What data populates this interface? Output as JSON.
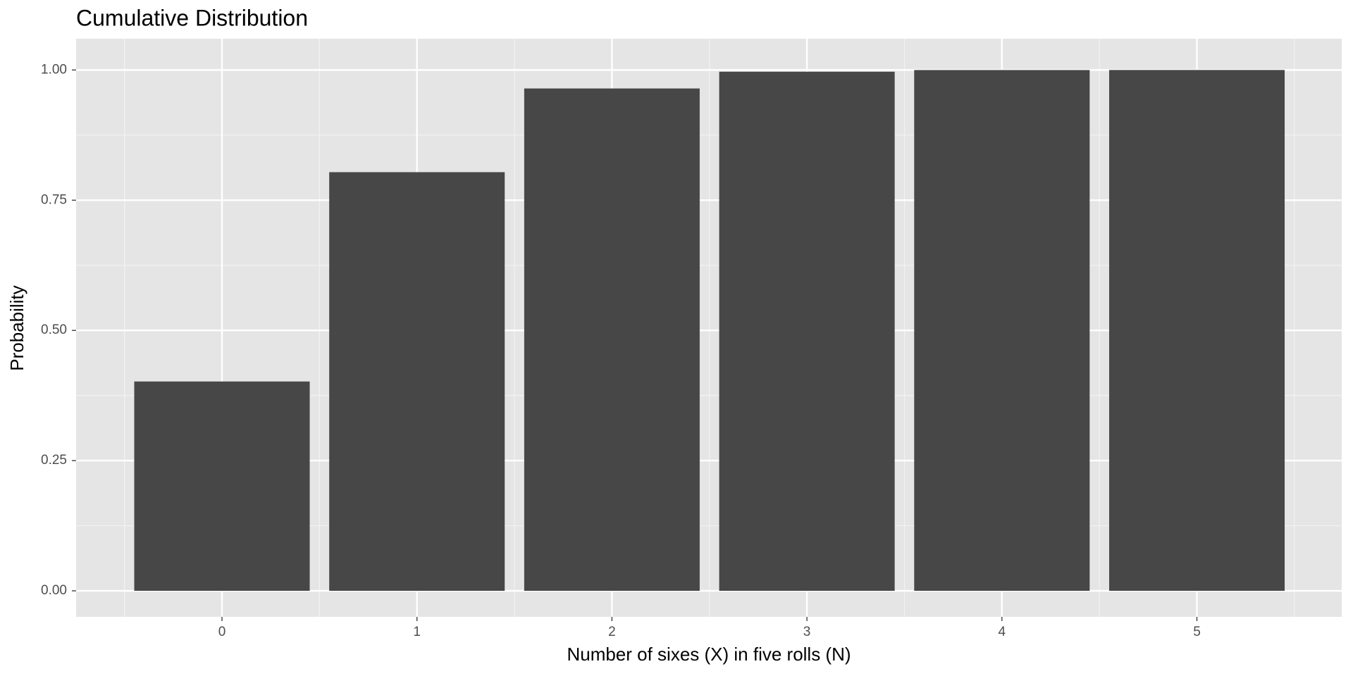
{
  "chart_data": {
    "type": "bar",
    "title": "Cumulative Distribution",
    "x_label": "Number of sixes (X) in five rolls (N)",
    "y_label": "Probability",
    "categories": [
      "0",
      "1",
      "2",
      "3",
      "4",
      "5"
    ],
    "values": [
      0.4019,
      0.8038,
      0.9645,
      0.9967,
      0.9999,
      1.0
    ],
    "color": "#474747",
    "ylim": [
      -0.05,
      1.06
    ],
    "yticks": [
      {
        "value": 0,
        "label": "0.00"
      },
      {
        "value": 0.25,
        "label": "0.25"
      },
      {
        "value": 0.5,
        "label": "0.50"
      },
      {
        "value": 0.75,
        "label": "0.75"
      },
      {
        "value": 1,
        "label": "1.00"
      }
    ],
    "grid": true
  }
}
